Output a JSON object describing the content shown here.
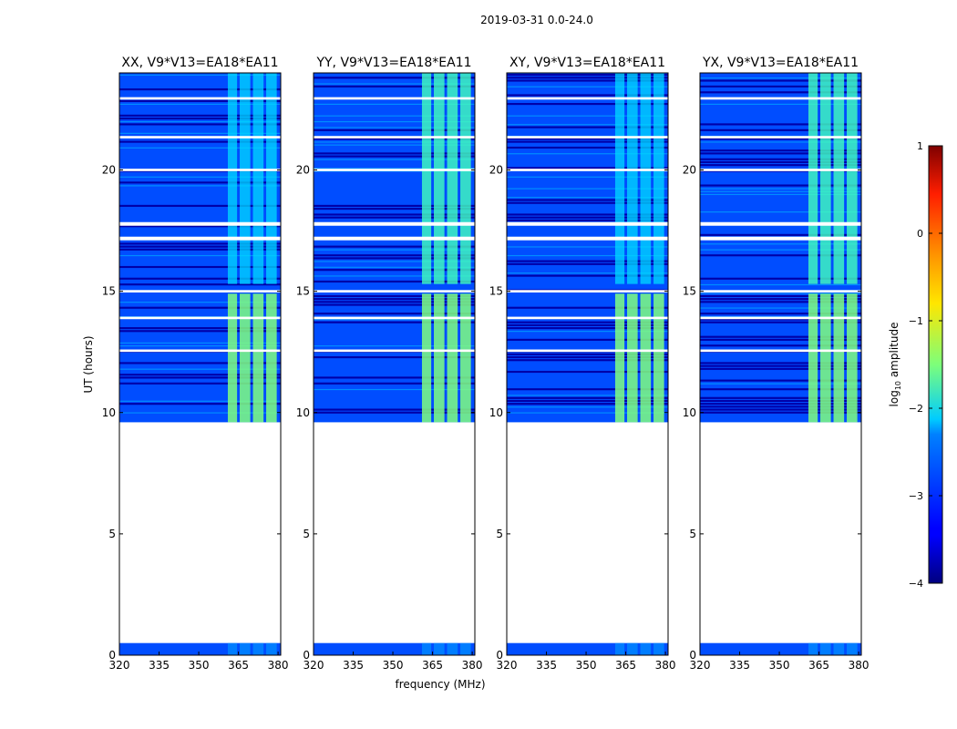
{
  "chart_data": {
    "type": "heatmap",
    "suptitle": "2019-03-31 0.0-24.0",
    "xlabel": "frequency (MHz)",
    "ylabel": "UT (hours)",
    "xlim": [
      320,
      381
    ],
    "ylim": [
      0,
      24
    ],
    "x_ticks": [
      "320",
      "335",
      "350",
      "365",
      "380"
    ],
    "x_tick_values": [
      320,
      335,
      350,
      365,
      380
    ],
    "y_ticks": [
      "0",
      "5",
      "10",
      "15",
      "20"
    ],
    "y_tick_values": [
      0,
      5,
      10,
      15,
      20
    ],
    "panels": [
      {
        "title": "XX, V9*V13=EA18*EA11",
        "polarization": "XX"
      },
      {
        "title": "YY, V9*V13=EA18*EA11",
        "polarization": "YY"
      },
      {
        "title": "XY, V9*V13=EA18*EA11",
        "polarization": "XY"
      },
      {
        "title": "YX, V9*V13=EA18*EA11",
        "polarization": "YX"
      }
    ],
    "data_time_ranges_hours": [
      [
        0.0,
        0.5
      ],
      [
        9.6,
        24.0
      ]
    ],
    "no_data_range_hours": [
      0.5,
      9.6
    ],
    "flagged_gap_hours": [
      14.95,
      15.05,
      17.1,
      17.25,
      17.7,
      17.85,
      19.95,
      20.05,
      21.3,
      21.4,
      22.9,
      23.0,
      12.5,
      12.6,
      13.85,
      13.95
    ],
    "rfi_band_mhz": [
      361,
      380
    ],
    "rfi_subbands_mhz": [
      [
        361,
        364.5
      ],
      [
        365.5,
        369.5
      ],
      [
        370.5,
        374.5
      ],
      [
        375.5,
        379.5
      ]
    ],
    "background_log_amplitude": -3,
    "rfi_log_amplitude_strong": -1.5,
    "rfi_log_amplitude_weak": -2.3,
    "colorbar": {
      "label": "log10 amplitude",
      "label_main": "log",
      "label_sub": "10",
      "label_rest": " amplitude",
      "range": [
        -4,
        1
      ],
      "ticks": [
        "1",
        "0",
        "−1",
        "−2",
        "−3",
        "−4"
      ],
      "tick_values": [
        1,
        0,
        -1,
        -2,
        -3,
        -4
      ],
      "colormap": "jet"
    }
  }
}
